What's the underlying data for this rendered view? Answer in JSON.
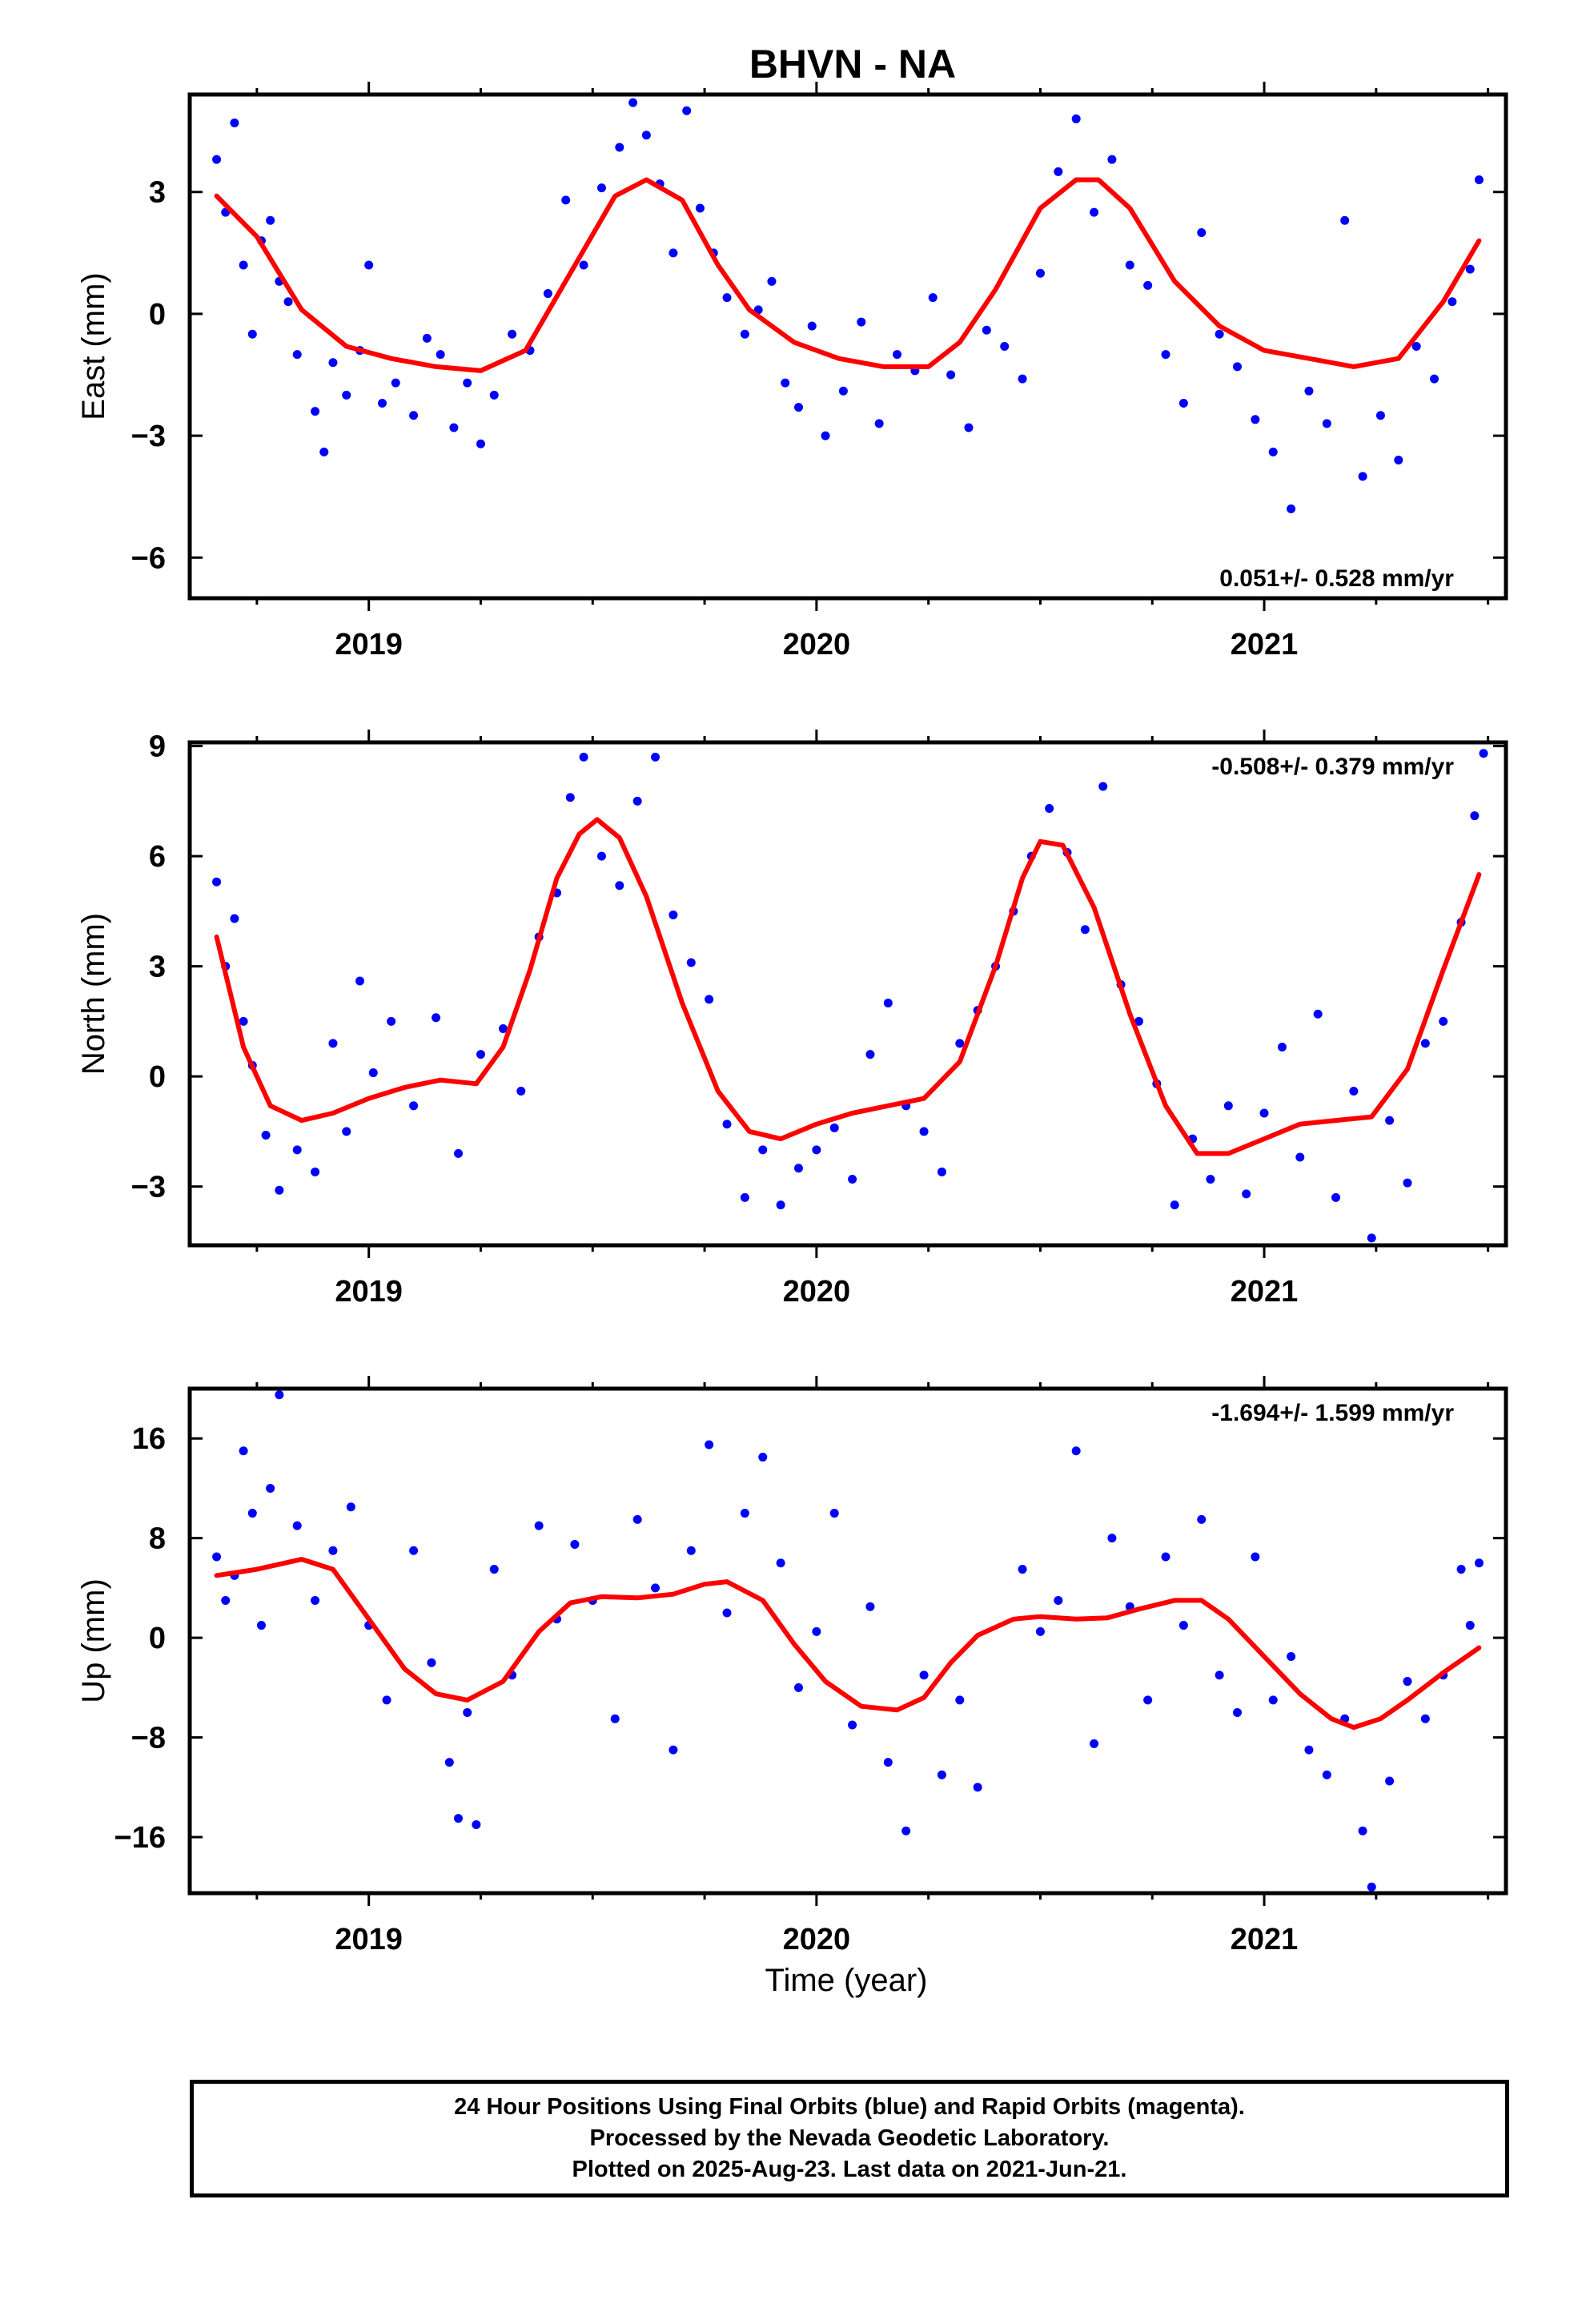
{
  "title": "BHVN - NA",
  "x_label": "Time (year)",
  "footer": {
    "line1": "24 Hour Positions Using Final Orbits (blue) and Rapid Orbits (magenta).",
    "line2": "Processed by the Nevada Geodetic Laboratory.",
    "line3": "Plotted on 2025-Aug-23. Last data on 2021-Jun-21."
  },
  "colors": {
    "data_points": "#0000ff",
    "fit_curve": "#ff0000",
    "frame": "#000000"
  },
  "chart_data": [
    {
      "type": "scatter",
      "ylabel": "East (mm)",
      "xlim": [
        2018.6,
        2021.54
      ],
      "ylim": [
        -7.0,
        5.4
      ],
      "yticks": [
        3,
        0,
        -3,
        -6
      ],
      "ytick_labels": [
        "3",
        "0",
        "−3",
        "−6"
      ],
      "xticks": [
        2019,
        2020,
        2021
      ],
      "xtick_labels": [
        "2019",
        "2020",
        "2021"
      ],
      "rate_text": "0.051+/- 0.528 mm/yr",
      "rate_position": "bottom-right",
      "fit_curve": {
        "x": [
          2018.66,
          2018.75,
          2018.85,
          2018.95,
          2019.05,
          2019.15,
          2019.25,
          2019.35,
          2019.45,
          2019.55,
          2019.62,
          2019.7,
          2019.78,
          2019.85,
          2019.95,
          2020.05,
          2020.15,
          2020.25,
          2020.32,
          2020.4,
          2020.5,
          2020.58,
          2020.63,
          2020.7,
          2020.8,
          2020.9,
          2021.0,
          2021.1,
          2021.2,
          2021.3,
          2021.4,
          2021.48
        ],
        "y": [
          2.9,
          1.9,
          0.1,
          -0.8,
          -1.1,
          -1.3,
          -1.4,
          -0.9,
          1.0,
          2.9,
          3.3,
          2.8,
          1.2,
          0.1,
          -0.7,
          -1.1,
          -1.3,
          -1.3,
          -0.7,
          0.6,
          2.6,
          3.3,
          3.3,
          2.6,
          0.8,
          -0.3,
          -0.9,
          -1.1,
          -1.3,
          -1.1,
          0.3,
          1.8
        ]
      },
      "points": {
        "x": [
          2018.66,
          2018.68,
          2018.7,
          2018.72,
          2018.74,
          2018.76,
          2018.78,
          2018.8,
          2018.82,
          2018.84,
          2018.88,
          2018.9,
          2018.92,
          2018.95,
          2018.98,
          2019.0,
          2019.03,
          2019.06,
          2019.1,
          2019.13,
          2019.16,
          2019.19,
          2019.22,
          2019.25,
          2019.28,
          2019.32,
          2019.36,
          2019.4,
          2019.44,
          2019.48,
          2019.52,
          2019.56,
          2019.59,
          2019.62,
          2019.65,
          2019.68,
          2019.71,
          2019.74,
          2019.77,
          2019.8,
          2019.84,
          2019.87,
          2019.9,
          2019.93,
          2019.96,
          2019.99,
          2020.02,
          2020.06,
          2020.1,
          2020.14,
          2020.18,
          2020.22,
          2020.26,
          2020.3,
          2020.34,
          2020.38,
          2020.42,
          2020.46,
          2020.5,
          2020.54,
          2020.58,
          2020.62,
          2020.66,
          2020.7,
          2020.74,
          2020.78,
          2020.82,
          2020.86,
          2020.9,
          2020.94,
          2020.98,
          2021.02,
          2021.06,
          2021.1,
          2021.14,
          2021.18,
          2021.22,
          2021.26,
          2021.3,
          2021.34,
          2021.38,
          2021.42,
          2021.46,
          2021.48
        ],
        "y": [
          3.8,
          2.5,
          4.7,
          1.2,
          -0.5,
          1.8,
          2.3,
          0.8,
          0.3,
          -1.0,
          -2.4,
          -3.4,
          -1.2,
          -2.0,
          -0.9,
          1.2,
          -2.2,
          -1.7,
          -2.5,
          -0.6,
          -1.0,
          -2.8,
          -1.7,
          -3.2,
          -2.0,
          -0.5,
          -0.9,
          0.5,
          2.8,
          1.2,
          3.1,
          4.1,
          5.2,
          4.4,
          3.2,
          1.5,
          5.0,
          2.6,
          1.5,
          0.4,
          -0.5,
          0.1,
          0.8,
          -1.7,
          -2.3,
          -0.3,
          -3.0,
          -1.9,
          -0.2,
          -2.7,
          -1.0,
          -1.4,
          0.4,
          -1.5,
          -2.8,
          -0.4,
          -0.8,
          -1.6,
          1.0,
          3.5,
          4.8,
          2.5,
          3.8,
          1.2,
          0.7,
          -1.0,
          -2.2,
          2.0,
          -0.5,
          -1.3,
          -2.6,
          -3.4,
          -4.8,
          -1.9,
          -2.7,
          2.3,
          -4.0,
          -2.5,
          -3.6,
          -0.8,
          -1.6,
          0.3,
          1.1,
          3.3
        ]
      }
    },
    {
      "type": "scatter",
      "ylabel": "North (mm)",
      "xlim": [
        2018.6,
        2021.54
      ],
      "ylim": [
        -4.6,
        9.1
      ],
      "yticks": [
        9,
        6,
        3,
        0,
        -3
      ],
      "ytick_labels": [
        "9",
        "6",
        "3",
        "0",
        "−3"
      ],
      "xticks": [
        2019,
        2020,
        2021
      ],
      "xtick_labels": [
        "2019",
        "2020",
        "2021"
      ],
      "rate_text": "-0.508+/- 0.379 mm/yr",
      "rate_position": "top-right",
      "fit_curve": {
        "x": [
          2018.66,
          2018.72,
          2018.78,
          2018.85,
          2018.92,
          2019.0,
          2019.08,
          2019.16,
          2019.24,
          2019.3,
          2019.36,
          2019.42,
          2019.47,
          2019.51,
          2019.56,
          2019.62,
          2019.7,
          2019.78,
          2019.85,
          2019.92,
          2020.0,
          2020.08,
          2020.16,
          2020.24,
          2020.32,
          2020.4,
          2020.46,
          2020.5,
          2020.55,
          2020.62,
          2020.7,
          2020.78,
          2020.85,
          2020.92,
          2021.0,
          2021.08,
          2021.16,
          2021.24,
          2021.32,
          2021.4,
          2021.48
        ],
        "y": [
          3.8,
          0.8,
          -0.8,
          -1.2,
          -1.0,
          -0.6,
          -0.3,
          -0.1,
          -0.2,
          0.8,
          2.9,
          5.4,
          6.6,
          7.0,
          6.5,
          4.9,
          2.0,
          -0.4,
          -1.5,
          -1.7,
          -1.3,
          -1.0,
          -0.8,
          -0.6,
          0.4,
          3.0,
          5.4,
          6.4,
          6.3,
          4.6,
          1.7,
          -0.8,
          -2.1,
          -2.1,
          -1.7,
          -1.3,
          -1.2,
          -1.1,
          0.2,
          2.9,
          5.5
        ]
      },
      "points": {
        "x": [
          2018.66,
          2018.68,
          2018.7,
          2018.72,
          2018.74,
          2018.77,
          2018.8,
          2018.84,
          2018.88,
          2018.92,
          2018.95,
          2018.98,
          2019.01,
          2019.05,
          2019.1,
          2019.15,
          2019.2,
          2019.25,
          2019.3,
          2019.34,
          2019.38,
          2019.42,
          2019.45,
          2019.48,
          2019.52,
          2019.56,
          2019.6,
          2019.64,
          2019.68,
          2019.72,
          2019.76,
          2019.8,
          2019.84,
          2019.88,
          2019.92,
          2019.96,
          2020.0,
          2020.04,
          2020.08,
          2020.12,
          2020.16,
          2020.2,
          2020.24,
          2020.28,
          2020.32,
          2020.36,
          2020.4,
          2020.44,
          2020.48,
          2020.52,
          2020.56,
          2020.6,
          2020.64,
          2020.68,
          2020.72,
          2020.76,
          2020.8,
          2020.84,
          2020.88,
          2020.92,
          2020.96,
          2021.0,
          2021.04,
          2021.08,
          2021.12,
          2021.16,
          2021.2,
          2021.24,
          2021.28,
          2021.32,
          2021.36,
          2021.4,
          2021.44,
          2021.47,
          2021.49
        ],
        "y": [
          5.3,
          3.0,
          4.3,
          1.5,
          0.3,
          -1.6,
          -3.1,
          -2.0,
          -2.6,
          0.9,
          -1.5,
          2.6,
          0.1,
          1.5,
          -0.8,
          1.6,
          -2.1,
          0.6,
          1.3,
          -0.4,
          3.8,
          5.0,
          7.6,
          8.7,
          6.0,
          5.2,
          7.5,
          8.7,
          4.4,
          3.1,
          2.1,
          -1.3,
          -3.3,
          -2.0,
          -3.5,
          -2.5,
          -2.0,
          -1.4,
          -2.8,
          0.6,
          2.0,
          -0.8,
          -1.5,
          -2.6,
          0.9,
          1.8,
          3.0,
          4.5,
          6.0,
          7.3,
          6.1,
          4.0,
          7.9,
          2.5,
          1.5,
          -0.2,
          -3.5,
          -1.7,
          -2.8,
          -0.8,
          -3.2,
          -1.0,
          0.8,
          -2.2,
          1.7,
          -3.3,
          -0.4,
          -4.4,
          -1.2,
          -2.9,
          0.9,
          1.5,
          4.2,
          7.1,
          8.8
        ]
      }
    },
    {
      "type": "scatter",
      "ylabel": "Up (mm)",
      "xlim": [
        2018.6,
        2021.54
      ],
      "ylim": [
        -20.5,
        20.0
      ],
      "yticks": [
        16,
        8,
        0,
        -8,
        -16
      ],
      "ytick_labels": [
        "16",
        "8",
        "0",
        "−8",
        "−16"
      ],
      "xticks": [
        2019,
        2020,
        2021
      ],
      "xtick_labels": [
        "2019",
        "2020",
        "2021"
      ],
      "rate_text": "-1.694+/- 1.599 mm/yr",
      "rate_position": "top-right",
      "fit_curve": {
        "x": [
          2018.66,
          2018.75,
          2018.85,
          2018.92,
          2019.0,
          2019.08,
          2019.15,
          2019.22,
          2019.3,
          2019.38,
          2019.45,
          2019.52,
          2019.6,
          2019.68,
          2019.75,
          2019.8,
          2019.88,
          2019.95,
          2020.02,
          2020.1,
          2020.18,
          2020.24,
          2020.3,
          2020.36,
          2020.44,
          2020.5,
          2020.58,
          2020.65,
          2020.72,
          2020.8,
          2020.86,
          2020.92,
          2021.0,
          2021.08,
          2021.15,
          2021.2,
          2021.26,
          2021.32,
          2021.4,
          2021.48
        ],
        "y": [
          5.0,
          5.5,
          6.3,
          5.5,
          1.5,
          -2.5,
          -4.5,
          -5.0,
          -3.5,
          0.5,
          2.8,
          3.3,
          3.2,
          3.5,
          4.3,
          4.5,
          3.0,
          -0.5,
          -3.5,
          -5.5,
          -5.8,
          -4.8,
          -2.0,
          0.2,
          1.5,
          1.7,
          1.5,
          1.6,
          2.3,
          3.0,
          3.0,
          1.5,
          -1.5,
          -4.5,
          -6.5,
          -7.2,
          -6.5,
          -5.0,
          -2.8,
          -0.8
        ]
      },
      "points": {
        "x": [
          2018.66,
          2018.68,
          2018.7,
          2018.72,
          2018.74,
          2018.76,
          2018.78,
          2018.8,
          2018.84,
          2018.88,
          2018.92,
          2018.96,
          2019.0,
          2019.04,
          2019.1,
          2019.14,
          2019.18,
          2019.2,
          2019.22,
          2019.24,
          2019.28,
          2019.32,
          2019.38,
          2019.42,
          2019.46,
          2019.5,
          2019.55,
          2019.6,
          2019.64,
          2019.68,
          2019.72,
          2019.76,
          2019.8,
          2019.84,
          2019.88,
          2019.92,
          2019.96,
          2020.0,
          2020.04,
          2020.08,
          2020.12,
          2020.16,
          2020.2,
          2020.24,
          2020.28,
          2020.32,
          2020.36,
          2020.46,
          2020.5,
          2020.54,
          2020.58,
          2020.62,
          2020.66,
          2020.7,
          2020.74,
          2020.78,
          2020.82,
          2020.86,
          2020.9,
          2020.94,
          2020.98,
          2021.02,
          2021.06,
          2021.1,
          2021.14,
          2021.18,
          2021.22,
          2021.24,
          2021.28,
          2021.32,
          2021.36,
          2021.4,
          2021.44,
          2021.46,
          2021.48
        ],
        "y": [
          6.5,
          3.0,
          5.0,
          15.0,
          10.0,
          1.0,
          12.0,
          19.5,
          9.0,
          3.0,
          7.0,
          10.5,
          1.0,
          -5.0,
          7.0,
          -2.0,
          -10.0,
          -14.5,
          -6.0,
          -15.0,
          5.5,
          -3.0,
          9.0,
          1.5,
          7.5,
          3.0,
          -6.5,
          9.5,
          4.0,
          -9.0,
          7.0,
          15.5,
          2.0,
          10.0,
          14.5,
          6.0,
          -4.0,
          0.5,
          10.0,
          -7.0,
          2.5,
          -10.0,
          -15.5,
          -3.0,
          -11.0,
          -5.0,
          -12.0,
          5.5,
          0.5,
          3.0,
          15.0,
          -8.5,
          8.0,
          2.5,
          -5.0,
          6.5,
          1.0,
          9.5,
          -3.0,
          -6.0,
          6.5,
          -5.0,
          -1.5,
          -9.0,
          -11.0,
          -6.5,
          -15.5,
          -20.0,
          -11.5,
          -3.5,
          -6.5,
          -3.0,
          5.5,
          1.0,
          6.0
        ]
      }
    }
  ]
}
